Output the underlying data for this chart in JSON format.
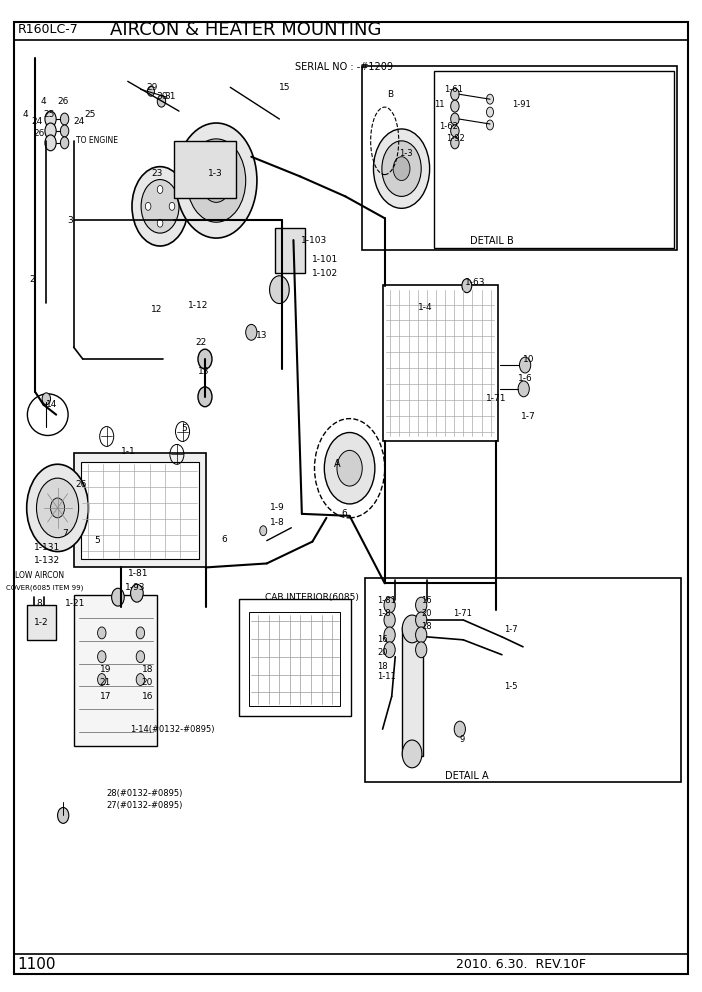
{
  "title": "AIRCON & HEATER MOUNTING",
  "model": "R160LC-7",
  "serial": "SERIAL NO : -#1209",
  "page": "1100",
  "date": "2010. 6.30.  REV.10F",
  "bg_color": "#ffffff",
  "line_color": "#000000",
  "fig_width": 7.02,
  "fig_height": 9.92,
  "dpi": 100
}
